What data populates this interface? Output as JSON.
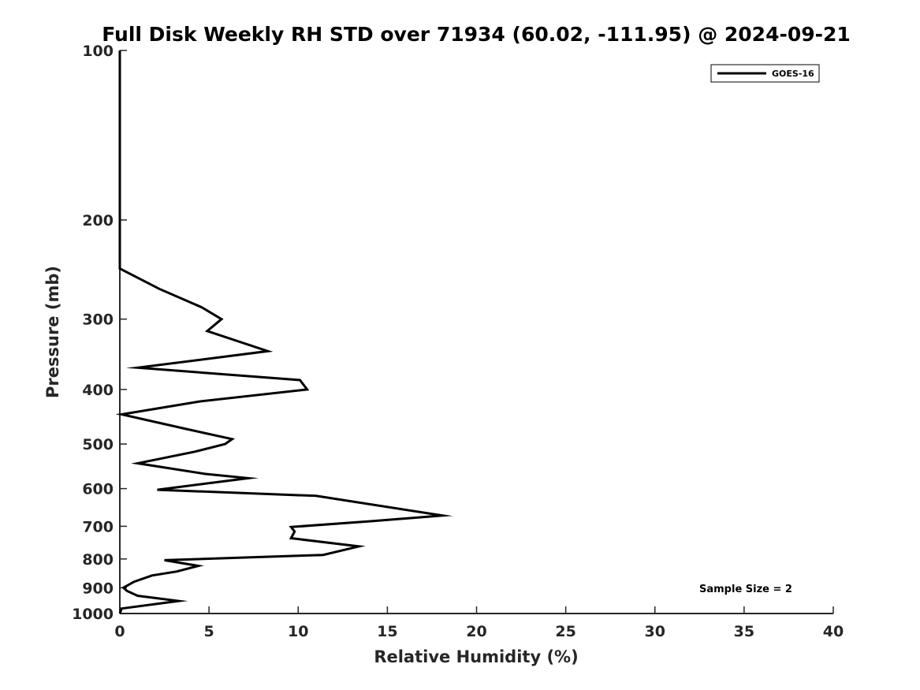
{
  "chart_data": {
    "type": "line",
    "title": "Full Disk Weekly RH STD over 71934 (60.02, -111.95) @ 2024-09-21",
    "xlabel": "Relative Humidity (%)",
    "ylabel": "Pressure (mb)",
    "xlim": [
      0,
      40
    ],
    "ylim": [
      100,
      1000
    ],
    "yscale": "log",
    "yaxis_inverted": true,
    "xticks": [
      0,
      5,
      10,
      15,
      20,
      25,
      30,
      35,
      40
    ],
    "yticks": [
      100,
      200,
      300,
      400,
      500,
      600,
      700,
      800,
      900,
      1000
    ],
    "grid": false,
    "legend_position": "top-right",
    "annotation": "Sample Size = 2",
    "series": [
      {
        "name": "GOES-16",
        "color": "#000000",
        "points": [
          [
            0,
            100
          ],
          [
            0,
            150
          ],
          [
            0,
            200
          ],
          [
            0,
            230
          ],
          [
            0,
            244
          ],
          [
            2.2,
            265
          ],
          [
            4.6,
            286
          ],
          [
            5.7,
            300
          ],
          [
            4.9,
            315
          ],
          [
            8.3,
            342
          ],
          [
            1.0,
            366
          ],
          [
            10.1,
            385
          ],
          [
            10.5,
            400
          ],
          [
            4.5,
            420
          ],
          [
            0.1,
            443
          ],
          [
            3.7,
            470
          ],
          [
            6.3,
            490
          ],
          [
            5.9,
            500
          ],
          [
            4.2,
            516
          ],
          [
            1.0,
            541
          ],
          [
            4.8,
            565
          ],
          [
            7.2,
            575
          ],
          [
            2.1,
            603
          ],
          [
            11.0,
            618
          ],
          [
            18.1,
            670
          ],
          [
            14.2,
            685
          ],
          [
            9.6,
            702
          ],
          [
            9.8,
            715
          ],
          [
            9.6,
            735
          ],
          [
            13.4,
            760
          ],
          [
            11.4,
            787
          ],
          [
            2.5,
            804
          ],
          [
            4.4,
            823
          ],
          [
            3.2,
            842
          ],
          [
            1.8,
            856
          ],
          [
            0.8,
            878
          ],
          [
            0.2,
            900
          ],
          [
            0.4,
            912
          ],
          [
            1.0,
            930
          ],
          [
            3.3,
            950
          ],
          [
            0.1,
            980
          ],
          [
            0,
            1000
          ]
        ]
      }
    ]
  }
}
